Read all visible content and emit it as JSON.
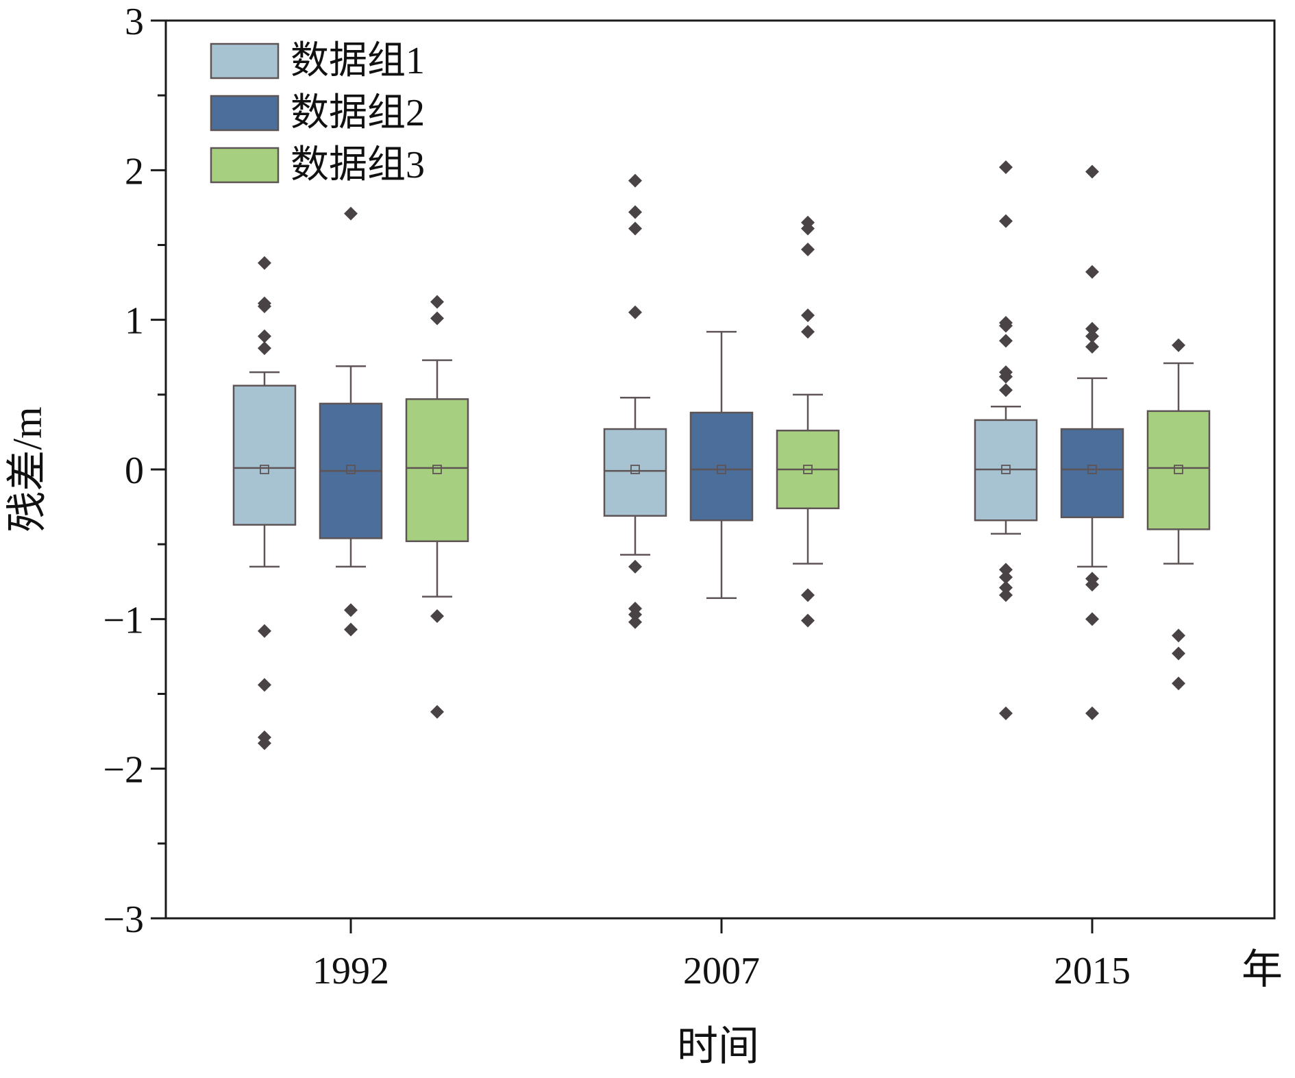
{
  "chart_data": {
    "type": "box",
    "xlabel": "时间",
    "ylabel": "残差/m",
    "x_unit_label": "年",
    "ylim": [
      -3,
      3
    ],
    "yticks": [
      3,
      2,
      1,
      0,
      -1,
      -2,
      -3
    ],
    "ytick_labels": [
      "3",
      "2",
      "1",
      "0",
      "−1",
      "−2",
      "−3"
    ],
    "categories": [
      "1992",
      "2007",
      "2015"
    ],
    "legend": {
      "position": "top-left"
    },
    "series": [
      {
        "name": "数据组1",
        "color": "#a7c3d2",
        "boxes": [
          {
            "q1": -0.37,
            "median": 0.01,
            "q3": 0.56,
            "mean": 0.0,
            "whisker_low": -0.65,
            "whisker_high": 0.65,
            "outliers": [
              1.38,
              1.11,
              1.09,
              0.89,
              0.81,
              -1.08,
              -1.44,
              -1.79,
              -1.83
            ]
          },
          {
            "q1": -0.31,
            "median": -0.01,
            "q3": 0.27,
            "mean": 0.0,
            "whisker_low": -0.57,
            "whisker_high": 0.48,
            "outliers": [
              1.93,
              1.72,
              1.61,
              1.05,
              -0.65,
              -0.93,
              -0.97,
              -1.02
            ]
          },
          {
            "q1": -0.34,
            "median": 0.0,
            "q3": 0.33,
            "mean": 0.0,
            "whisker_low": -0.43,
            "whisker_high": 0.42,
            "outliers": [
              2.02,
              1.66,
              0.98,
              0.96,
              0.86,
              0.65,
              0.62,
              0.53,
              -0.67,
              -0.72,
              -0.79,
              -0.84,
              -1.63
            ]
          }
        ]
      },
      {
        "name": "数据组2",
        "color": "#4b6e9a",
        "boxes": [
          {
            "q1": -0.46,
            "median": -0.01,
            "q3": 0.44,
            "mean": 0.0,
            "whisker_low": -0.65,
            "whisker_high": 0.69,
            "outliers": [
              1.71,
              -0.94,
              -1.07
            ]
          },
          {
            "q1": -0.34,
            "median": 0.0,
            "q3": 0.38,
            "mean": 0.0,
            "whisker_low": -0.86,
            "whisker_high": 0.92,
            "outliers": []
          },
          {
            "q1": -0.32,
            "median": 0.0,
            "q3": 0.27,
            "mean": 0.0,
            "whisker_low": -0.65,
            "whisker_high": 0.61,
            "outliers": [
              1.99,
              1.32,
              0.94,
              0.89,
              0.82,
              -0.73,
              -0.77,
              -1.0,
              -1.63
            ]
          }
        ]
      },
      {
        "name": "数据组3",
        "color": "#a6d07f",
        "boxes": [
          {
            "q1": -0.48,
            "median": 0.01,
            "q3": 0.47,
            "mean": 0.0,
            "whisker_low": -0.85,
            "whisker_high": 0.73,
            "outliers": [
              1.12,
              1.01,
              -0.98,
              -1.62
            ]
          },
          {
            "q1": -0.26,
            "median": 0.0,
            "q3": 0.26,
            "mean": 0.0,
            "whisker_low": -0.63,
            "whisker_high": 0.5,
            "outliers": [
              1.65,
              1.61,
              1.47,
              1.03,
              0.92,
              -0.84,
              -1.01
            ]
          },
          {
            "q1": -0.4,
            "median": 0.01,
            "q3": 0.39,
            "mean": 0.0,
            "whisker_low": -0.63,
            "whisker_high": 0.71,
            "outliers": [
              0.83,
              -1.11,
              -1.23,
              -1.43
            ]
          }
        ]
      }
    ],
    "style": {
      "outline_color": "#5e5455",
      "outlier_color": "#4a4345",
      "axis_color": "#1a1a1a"
    }
  }
}
